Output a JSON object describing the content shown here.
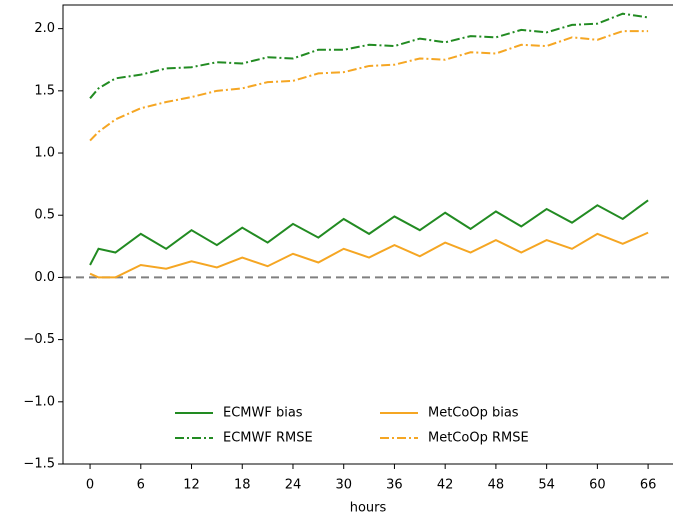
{
  "chart_data": {
    "type": "line",
    "x_label": "hours",
    "x": [
      0,
      1,
      3,
      6,
      9,
      12,
      15,
      18,
      21,
      24,
      27,
      30,
      33,
      36,
      39,
      42,
      45,
      48,
      51,
      54,
      57,
      60,
      63,
      66
    ],
    "series": [
      {
        "name": "ECMWF bias",
        "color": "#228b22",
        "dash": "solid",
        "values": [
          0.1,
          0.23,
          0.2,
          0.35,
          0.23,
          0.38,
          0.26,
          0.4,
          0.28,
          0.43,
          0.32,
          0.47,
          0.35,
          0.49,
          0.38,
          0.52,
          0.39,
          0.53,
          0.41,
          0.55,
          0.44,
          0.58,
          0.47,
          0.62
        ]
      },
      {
        "name": "ECMWF RMSE",
        "color": "#228b22",
        "dash": "dashdot",
        "values": [
          1.44,
          1.52,
          1.6,
          1.63,
          1.68,
          1.69,
          1.73,
          1.72,
          1.77,
          1.76,
          1.83,
          1.83,
          1.87,
          1.86,
          1.92,
          1.89,
          1.94,
          1.93,
          1.99,
          1.97,
          2.03,
          2.04,
          2.12,
          2.09
        ]
      },
      {
        "name": "MetCoOp bias",
        "color": "#f5a623",
        "dash": "solid",
        "values": [
          0.03,
          0.0,
          0.0,
          0.1,
          0.07,
          0.13,
          0.08,
          0.16,
          0.09,
          0.19,
          0.12,
          0.23,
          0.16,
          0.26,
          0.17,
          0.28,
          0.2,
          0.3,
          0.2,
          0.3,
          0.23,
          0.35,
          0.27,
          0.36
        ]
      },
      {
        "name": "MetCoOp RMSE",
        "color": "#f5a623",
        "dash": "dashdot",
        "values": [
          1.1,
          1.17,
          1.27,
          1.36,
          1.41,
          1.45,
          1.5,
          1.52,
          1.57,
          1.58,
          1.64,
          1.65,
          1.7,
          1.71,
          1.76,
          1.75,
          1.81,
          1.8,
          1.87,
          1.86,
          1.93,
          1.91,
          1.98,
          1.98
        ]
      }
    ],
    "reference_line": 0,
    "xlim": [
      -3.2,
      69.3
    ],
    "xticks": [
      0,
      6,
      12,
      18,
      24,
      30,
      36,
      42,
      48,
      54,
      60,
      66
    ],
    "ylim": [
      -1.5,
      2.19
    ],
    "yticks": [
      {
        "value": -1.5,
        "label": "−1.5"
      },
      {
        "value": -1.0,
        "label": "−1.0"
      },
      {
        "value": -0.5,
        "label": "−0.5"
      },
      {
        "value": 0,
        "label": "0.0"
      },
      {
        "value": 0.5,
        "label": "0.5"
      },
      {
        "value": 1.0,
        "label": "1.0"
      },
      {
        "value": 1.5,
        "label": "1.5"
      },
      {
        "value": 2.0,
        "label": "2.0"
      }
    ],
    "legend": "lower center",
    "legend_columns": 2
  }
}
